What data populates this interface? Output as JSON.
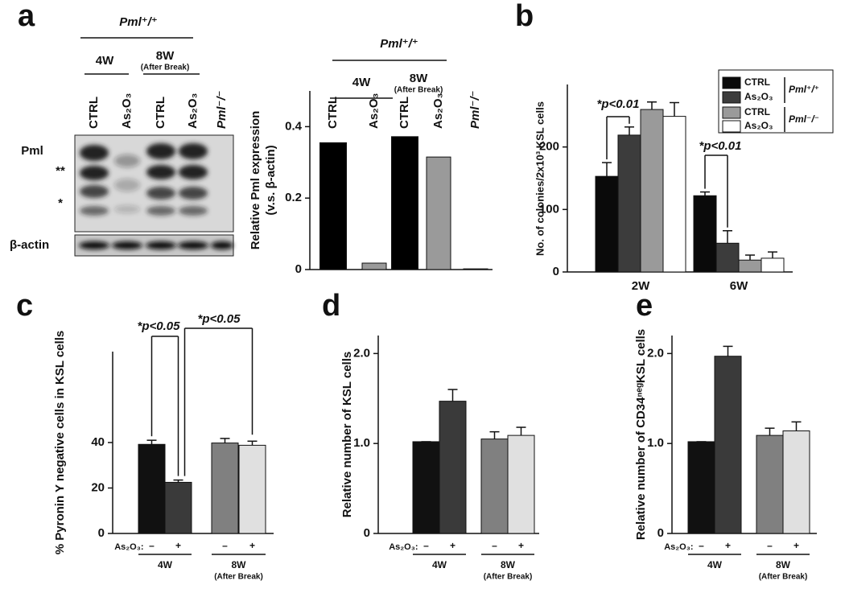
{
  "panel_labels": [
    "a",
    "b",
    "c",
    "d",
    "e"
  ],
  "blot": {
    "genotype": "Pml⁺/⁺",
    "groups": [
      "4W",
      "8W"
    ],
    "group_note": "(After Break)",
    "lanes": [
      "CTRL",
      "As₂O₃",
      "CTRL",
      "As₂O₃",
      "Pml⁻/⁻"
    ],
    "rows": [
      "Pml",
      "**",
      "*",
      "β-actin"
    ]
  },
  "chart_data": [
    {
      "type": "bar",
      "genotype": "Pml⁺/⁺",
      "groups": [
        "4W",
        "8W"
      ],
      "group_note": "(After Break)",
      "y_label": [
        "Relative Pml expression",
        "(v.s. β-actin)"
      ],
      "categories": [
        "CTRL",
        "As₂O₃",
        "CTRL",
        "As₂O₃",
        "Pml⁻/⁻"
      ],
      "values": [
        0.355,
        0.018,
        0.372,
        0.315,
        0.002
      ],
      "colors": [
        "#000000",
        "#9a9a9a",
        "#000000",
        "#9a9a9a",
        "#9a9a9a"
      ],
      "ylim": [
        0,
        0.5
      ],
      "yticks": [
        0,
        0.2,
        0.4
      ]
    },
    {
      "type": "grouped_bar",
      "y_label": "No. of colonies/2x10³ KSL cells",
      "categories": [
        "2W",
        "6W"
      ],
      "series": [
        {
          "name": "CTRL",
          "color": "#0a0a0a",
          "values": [
            153,
            122
          ],
          "errors": [
            22,
            6
          ]
        },
        {
          "name": "As₂O₃",
          "color": "#3c3c3c",
          "values": [
            219,
            46
          ],
          "errors": [
            13,
            20
          ]
        },
        {
          "name": "CTRL",
          "color": "#9a9a9a",
          "values": [
            260,
            19
          ],
          "errors": [
            12,
            8
          ]
        },
        {
          "name": "As₂O₃",
          "color": "#ffffff",
          "values": [
            249,
            22
          ],
          "errors": [
            22,
            10
          ]
        }
      ],
      "legend_groups": [
        "Pml⁺/⁺",
        "Pml⁻/⁻"
      ],
      "annotations": [
        "*p<0.01",
        "*p<0.01"
      ],
      "ylim": [
        0,
        300
      ],
      "yticks": [
        0,
        100,
        200
      ]
    },
    {
      "type": "bar_error",
      "y_label": "% Pyronin Y negative cells in KSL cells",
      "treatment": "As₂O₃:",
      "categories": [
        "–",
        "+",
        "–",
        "+"
      ],
      "groups": [
        "4W",
        "8W"
      ],
      "group_note": "(After Break)",
      "values": [
        39.2,
        22.5,
        39.8,
        38.8
      ],
      "errors": [
        1.8,
        1.0,
        2.0,
        1.8
      ],
      "colors": [
        "#111111",
        "#3a3a3a",
        "#808080",
        "#e0e0e0"
      ],
      "annotations": [
        "*p<0.05",
        "*p<0.05"
      ],
      "ylim": [
        0,
        80
      ],
      "yticks": [
        0,
        20,
        40
      ]
    },
    {
      "type": "bar_error",
      "y_label": "Relative number of KSL cells",
      "treatment": "As₂O₃:",
      "categories": [
        "–",
        "+",
        "–",
        "+"
      ],
      "groups": [
        "4W",
        "8W"
      ],
      "group_note": "(After Break)",
      "values": [
        1.02,
        1.47,
        1.05,
        1.09
      ],
      "errors": [
        0,
        0.13,
        0.08,
        0.09
      ],
      "colors": [
        "#111111",
        "#3a3a3a",
        "#808080",
        "#e0e0e0"
      ],
      "ylim": [
        0,
        2.2
      ],
      "yticks": [
        0,
        {
          "value": 1,
          "label": "1.0"
        },
        {
          "value": 2,
          "label": "2.0"
        }
      ]
    },
    {
      "type": "bar_error",
      "y_label": "Relative number of CD34ⁿᵉᵍKSL cells",
      "treatment": "As₂O₃:",
      "categories": [
        "–",
        "+",
        "–",
        "+"
      ],
      "groups": [
        "4W",
        "8W"
      ],
      "group_note": "(After Break)",
      "values": [
        1.02,
        1.97,
        1.09,
        1.14
      ],
      "errors": [
        0,
        0.11,
        0.08,
        0.1
      ],
      "colors": [
        "#111111",
        "#3a3a3a",
        "#808080",
        "#e0e0e0"
      ],
      "ylim": [
        0,
        2.2
      ],
      "yticks": [
        0,
        {
          "value": 1,
          "label": "1.0"
        },
        {
          "value": 2,
          "label": "2.0"
        }
      ]
    }
  ]
}
